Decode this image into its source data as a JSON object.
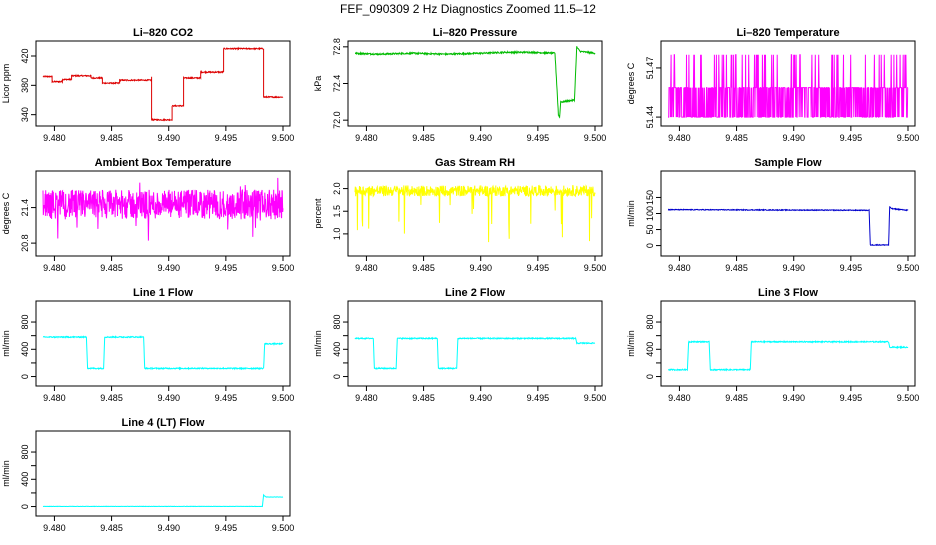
{
  "title": "FEF_090309  2 Hz Diagnostics Zoomed 11.5–12",
  "chart_data": [
    {
      "type": "line",
      "title": "Li–820 CO2",
      "ylabel": "Licor ppm",
      "color": "#dd0000",
      "xlim": [
        9.479,
        9.5
      ],
      "ylim": [
        330,
        435
      ],
      "xticks": [
        9.48,
        9.485,
        9.49,
        9.495,
        9.5
      ],
      "xtick_labels": [
        "9.480",
        "9.485",
        "9.490",
        "9.495",
        "9.500"
      ],
      "yticks": [
        340,
        380,
        420
      ],
      "ytick_labels": [
        "340",
        "380",
        "420"
      ],
      "noise": 0.8,
      "spiky": false,
      "series": [
        {
          "x": [
            9.479,
            9.4798,
            9.4798,
            9.4807,
            9.4807,
            9.4815,
            9.4815,
            9.4832,
            9.4832,
            9.4842,
            9.4842,
            9.4857,
            9.4857,
            9.4885,
            9.4885,
            9.4885,
            9.4885,
            9.4903,
            9.4903,
            9.4913,
            9.4913,
            9.4928,
            9.4928,
            9.4948,
            9.4948,
            9.4983,
            9.4983,
            9.5
          ],
          "y": [
            392,
            392,
            385,
            385,
            388,
            388,
            393,
            393,
            390,
            390,
            383,
            383,
            387,
            387,
            391,
            391,
            333,
            333,
            352,
            352,
            390,
            390,
            398,
            398,
            430,
            430,
            364,
            364
          ]
        }
      ]
    },
    {
      "type": "line",
      "title": "Li–820 Pressure",
      "ylabel": "kPa",
      "color": "#00bb00",
      "xlim": [
        9.479,
        9.5
      ],
      "ylim": [
        71.98,
        72.82
      ],
      "xticks": [
        9.48,
        9.485,
        9.49,
        9.495,
        9.5
      ],
      "xtick_labels": [
        "9.480",
        "9.485",
        "9.490",
        "9.495",
        "9.500"
      ],
      "yticks": [
        72.0,
        72.4,
        72.8
      ],
      "ytick_labels": [
        "72.0",
        "72.4",
        "72.8"
      ],
      "noise": 0.008,
      "spiky": false,
      "series": [
        {
          "x": [
            9.479,
            9.481,
            9.484,
            9.487,
            9.49,
            9.492,
            9.4945,
            9.4965,
            9.4968,
            9.4969,
            9.497,
            9.4972,
            9.4982,
            9.4984,
            9.4985,
            9.4987,
            9.5
          ],
          "y": [
            72.73,
            72.72,
            72.73,
            72.72,
            72.73,
            72.74,
            72.74,
            72.73,
            72.06,
            72.03,
            72.2,
            72.2,
            72.22,
            72.8,
            72.78,
            72.75,
            72.73
          ]
        }
      ]
    },
    {
      "type": "line",
      "title": "Li–820 Temperature",
      "ylabel": "degrees C",
      "color": "#ff00ff",
      "xlim": [
        9.479,
        9.5
      ],
      "ylim": [
        51.437,
        51.484
      ],
      "xticks": [
        9.48,
        9.485,
        9.49,
        9.495,
        9.5
      ],
      "xtick_labels": [
        "9.480",
        "9.485",
        "9.490",
        "9.495",
        "9.500"
      ],
      "yticks": [
        51.44,
        51.47
      ],
      "ytick_labels": [
        "51.44",
        "51.47"
      ],
      "spiky": "temp",
      "series": [
        {
          "x": [
            9.479,
            9.5
          ],
          "y": [
            51.458,
            51.458
          ]
        }
      ]
    },
    {
      "type": "line",
      "title": "Ambient Box Temperature",
      "ylabel": "degrees C",
      "color": "#ff00ff",
      "xlim": [
        9.479,
        9.5
      ],
      "ylim": [
        20.65,
        21.95
      ],
      "xticks": [
        9.48,
        9.485,
        9.49,
        9.495,
        9.5
      ],
      "xtick_labels": [
        "9.480",
        "9.485",
        "9.490",
        "9.495",
        "9.500"
      ],
      "yticks": [
        20.8,
        21.4
      ],
      "ytick_labels": [
        "20.8",
        "21.4"
      ],
      "noise": 0.25,
      "spiky": "dense",
      "series": [
        {
          "x": [
            9.479,
            9.5
          ],
          "y": [
            21.45,
            21.45
          ]
        }
      ]
    },
    {
      "type": "line",
      "title": "Gas Stream RH",
      "ylabel": "percent",
      "color": "#ffff00",
      "xlim": [
        9.479,
        9.5
      ],
      "ylim": [
        0.6,
        2.3
      ],
      "xticks": [
        9.48,
        9.485,
        9.49,
        9.495,
        9.5
      ],
      "xtick_labels": [
        "9.480",
        "9.485",
        "9.490",
        "9.495",
        "9.500"
      ],
      "yticks": [
        1.0,
        1.5,
        2.0
      ],
      "ytick_labels": [
        "1.0",
        "1.5",
        "2.0"
      ],
      "noise": 0.12,
      "spiky": "rh",
      "series": [
        {
          "x": [
            9.479,
            9.5
          ],
          "y": [
            1.95,
            1.95
          ]
        }
      ]
    },
    {
      "type": "line",
      "title": "Sample Flow",
      "ylabel": "ml/min",
      "color": "#0000cc",
      "xlim": [
        9.479,
        9.5
      ],
      "ylim": [
        -20,
        220
      ],
      "xticks": [
        9.48,
        9.485,
        9.49,
        9.495,
        9.5
      ],
      "xtick_labels": [
        "9.480",
        "9.485",
        "9.490",
        "9.495",
        "9.500"
      ],
      "yticks": [
        0,
        50,
        100,
        150
      ],
      "ytick_labels": [
        "0",
        "50",
        "100",
        "150"
      ],
      "noise": 1.2,
      "spiky": false,
      "series": [
        {
          "x": [
            9.479,
            9.4966,
            9.4967,
            9.4983,
            9.4984,
            9.4986,
            9.5
          ],
          "y": [
            112,
            110,
            2,
            2,
            120,
            115,
            110
          ]
        }
      ]
    },
    {
      "type": "line",
      "title": "Line 1 Flow",
      "ylabel": "ml/min",
      "color": "#00ffff",
      "xlim": [
        9.479,
        9.5
      ],
      "ylim": [
        -80,
        1050
      ],
      "xticks": [
        9.48,
        9.485,
        9.49,
        9.495,
        9.5
      ],
      "xtick_labels": [
        "9.480",
        "9.485",
        "9.490",
        "9.495",
        "9.500"
      ],
      "yticks": [
        0,
        200,
        400,
        600,
        800
      ],
      "ytick_labels": [
        "0",
        "",
        "400",
        "",
        "800"
      ],
      "noise": 8,
      "spiky": false,
      "series": [
        {
          "x": [
            9.479,
            9.4828,
            9.4829,
            9.4843,
            9.4844,
            9.4878,
            9.4879,
            9.4983,
            9.4984,
            9.5
          ],
          "y": [
            580,
            580,
            120,
            120,
            580,
            580,
            120,
            120,
            480,
            480
          ]
        }
      ]
    },
    {
      "type": "line",
      "title": "Line 2 Flow",
      "ylabel": "ml/min",
      "color": "#00ffff",
      "xlim": [
        9.479,
        9.5
      ],
      "ylim": [
        -80,
        1050
      ],
      "xticks": [
        9.48,
        9.485,
        9.49,
        9.495,
        9.5
      ],
      "xtick_labels": [
        "9.480",
        "9.485",
        "9.490",
        "9.495",
        "9.500"
      ],
      "yticks": [
        0,
        200,
        400,
        600,
        800
      ],
      "ytick_labels": [
        "0",
        "",
        "400",
        "",
        "800"
      ],
      "noise": 8,
      "spiky": false,
      "series": [
        {
          "x": [
            9.479,
            9.4806,
            9.4807,
            9.4826,
            9.4827,
            9.4862,
            9.4863,
            9.4879,
            9.488,
            9.4983,
            9.4984,
            9.5
          ],
          "y": [
            560,
            560,
            120,
            120,
            560,
            560,
            120,
            120,
            560,
            560,
            490,
            490
          ]
        }
      ]
    },
    {
      "type": "line",
      "title": "Line 3 Flow",
      "ylabel": "ml/min",
      "color": "#00ffff",
      "xlim": [
        9.479,
        9.5
      ],
      "ylim": [
        -80,
        1050
      ],
      "xticks": [
        9.48,
        9.485,
        9.49,
        9.495,
        9.5
      ],
      "xtick_labels": [
        "9.480",
        "9.485",
        "9.490",
        "9.495",
        "9.500"
      ],
      "yticks": [
        0,
        200,
        400,
        600,
        800
      ],
      "ytick_labels": [
        "0",
        "",
        "400",
        "",
        "800"
      ],
      "noise": 8,
      "spiky": false,
      "series": [
        {
          "x": [
            9.479,
            9.4807,
            9.4808,
            9.4826,
            9.4827,
            9.4862,
            9.4863,
            9.4983,
            9.4984,
            9.5
          ],
          "y": [
            100,
            100,
            510,
            510,
            100,
            100,
            510,
            510,
            430,
            430
          ]
        }
      ]
    },
    {
      "type": "line",
      "title": "Line 4 (LT) Flow",
      "ylabel": "ml/min",
      "color": "#00ffff",
      "xlim": [
        9.479,
        9.5
      ],
      "ylim": [
        -80,
        1050
      ],
      "xticks": [
        9.48,
        9.485,
        9.49,
        9.495,
        9.5
      ],
      "xtick_labels": [
        "9.480",
        "9.485",
        "9.490",
        "9.495",
        "9.500"
      ],
      "yticks": [
        0,
        200,
        400,
        600,
        800
      ],
      "ytick_labels": [
        "0",
        "",
        "400",
        "",
        "800"
      ],
      "noise": 2,
      "spiky": false,
      "series": [
        {
          "x": [
            9.479,
            9.4982,
            9.4983,
            9.4985,
            9.5
          ],
          "y": [
            2,
            2,
            170,
            140,
            140
          ]
        }
      ]
    }
  ]
}
